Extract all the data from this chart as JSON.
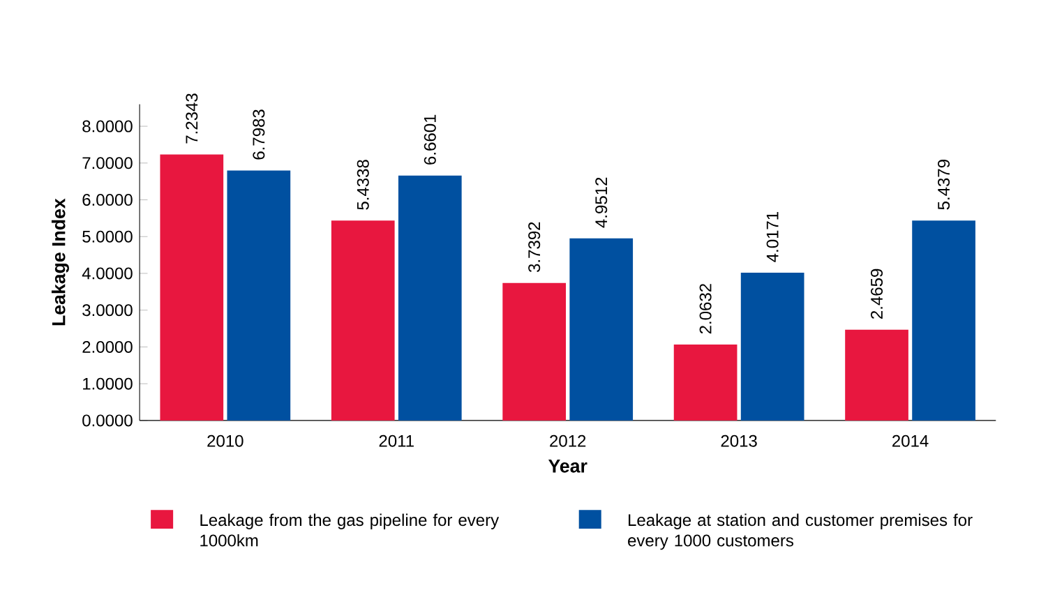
{
  "chart_data": {
    "type": "bar",
    "xlabel": "Year",
    "ylabel": "Leakage Index",
    "categories": [
      "2010",
      "2011",
      "2012",
      "2013",
      "2014"
    ],
    "series": [
      {
        "name": "Leakage from the gas pipeline for every 1000km",
        "color": "#e8173f",
        "values": [
          7.2343,
          5.4338,
          3.7392,
          2.0632,
          2.4659
        ]
      },
      {
        "name": "Leakage at station and customer premises for every 1000 customers",
        "color": "#0050a0",
        "values": [
          6.7983,
          6.6601,
          4.9512,
          4.0171,
          5.4379
        ]
      }
    ],
    "ylim": [
      0,
      8.6
    ],
    "yticks": [
      {
        "value": 0,
        "label": "0.0000"
      },
      {
        "value": 1,
        "label": "1.0000"
      },
      {
        "value": 2,
        "label": "2.0000"
      },
      {
        "value": 3,
        "label": "3.0000"
      },
      {
        "value": 4,
        "label": "4.0000"
      },
      {
        "value": 5,
        "label": "5.0000"
      },
      {
        "value": 6,
        "label": "6.0000"
      },
      {
        "value": 7,
        "label": "7.0000"
      },
      {
        "value": 8,
        "label": "8.0000"
      }
    ],
    "data_labels": true,
    "legend": "bottom",
    "grid": false
  }
}
